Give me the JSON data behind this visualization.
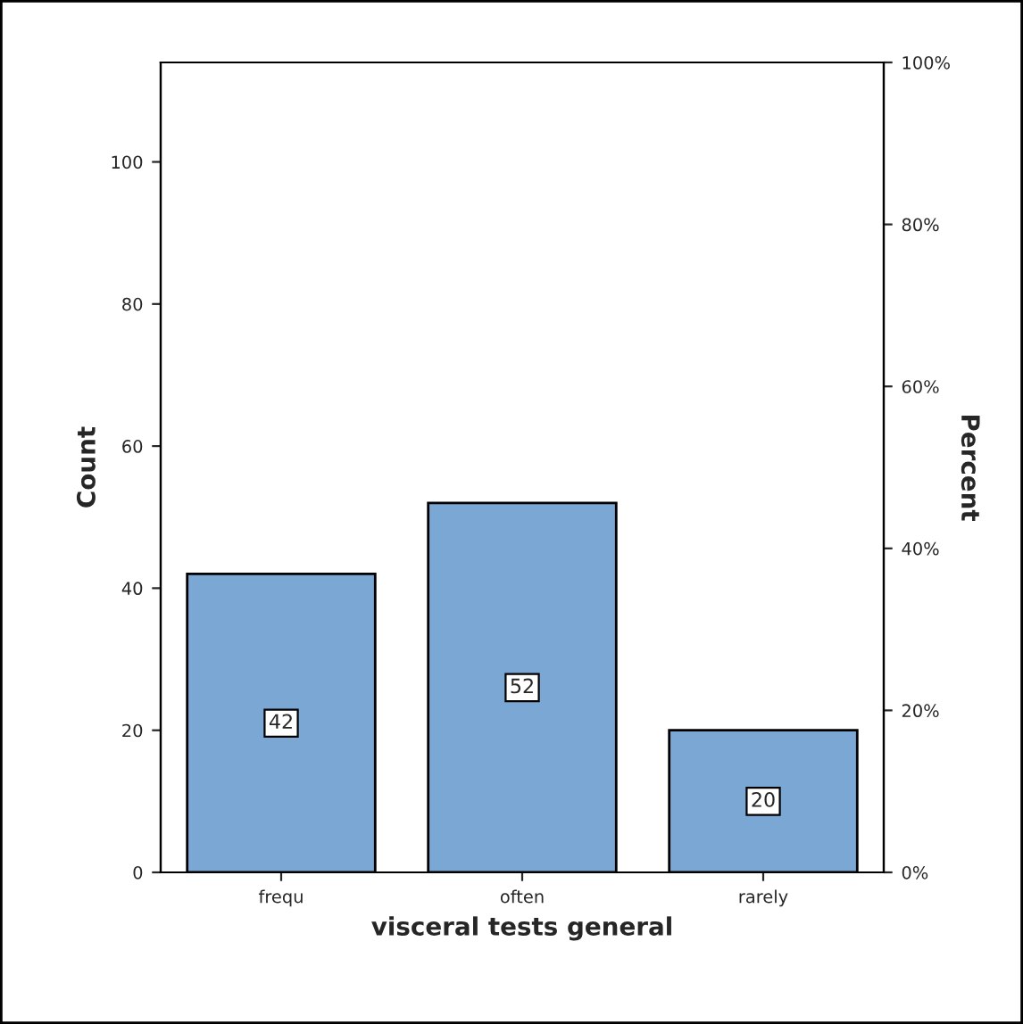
{
  "chart_data": {
    "type": "bar",
    "xlabel": "visceral tests general",
    "ylabel": "Count",
    "y2label": "Percent",
    "categories": [
      "frequ",
      "often",
      "rarely"
    ],
    "values": [
      42,
      52,
      20
    ],
    "color": "#7ba7d5",
    "ylim": [
      0,
      114
    ],
    "yticks": [
      0,
      20,
      40,
      60,
      80,
      100
    ],
    "y2lim": [
      0,
      100
    ],
    "y2ticks": [
      {
        "value": 0,
        "label": "0%"
      },
      {
        "value": 20,
        "label": "20%"
      },
      {
        "value": 40,
        "label": "40%"
      },
      {
        "value": 60,
        "label": "60%"
      },
      {
        "value": 80,
        "label": "80%"
      },
      {
        "value": 100,
        "label": "100%"
      }
    ],
    "data_labels": true,
    "grid": false,
    "legend": false
  }
}
